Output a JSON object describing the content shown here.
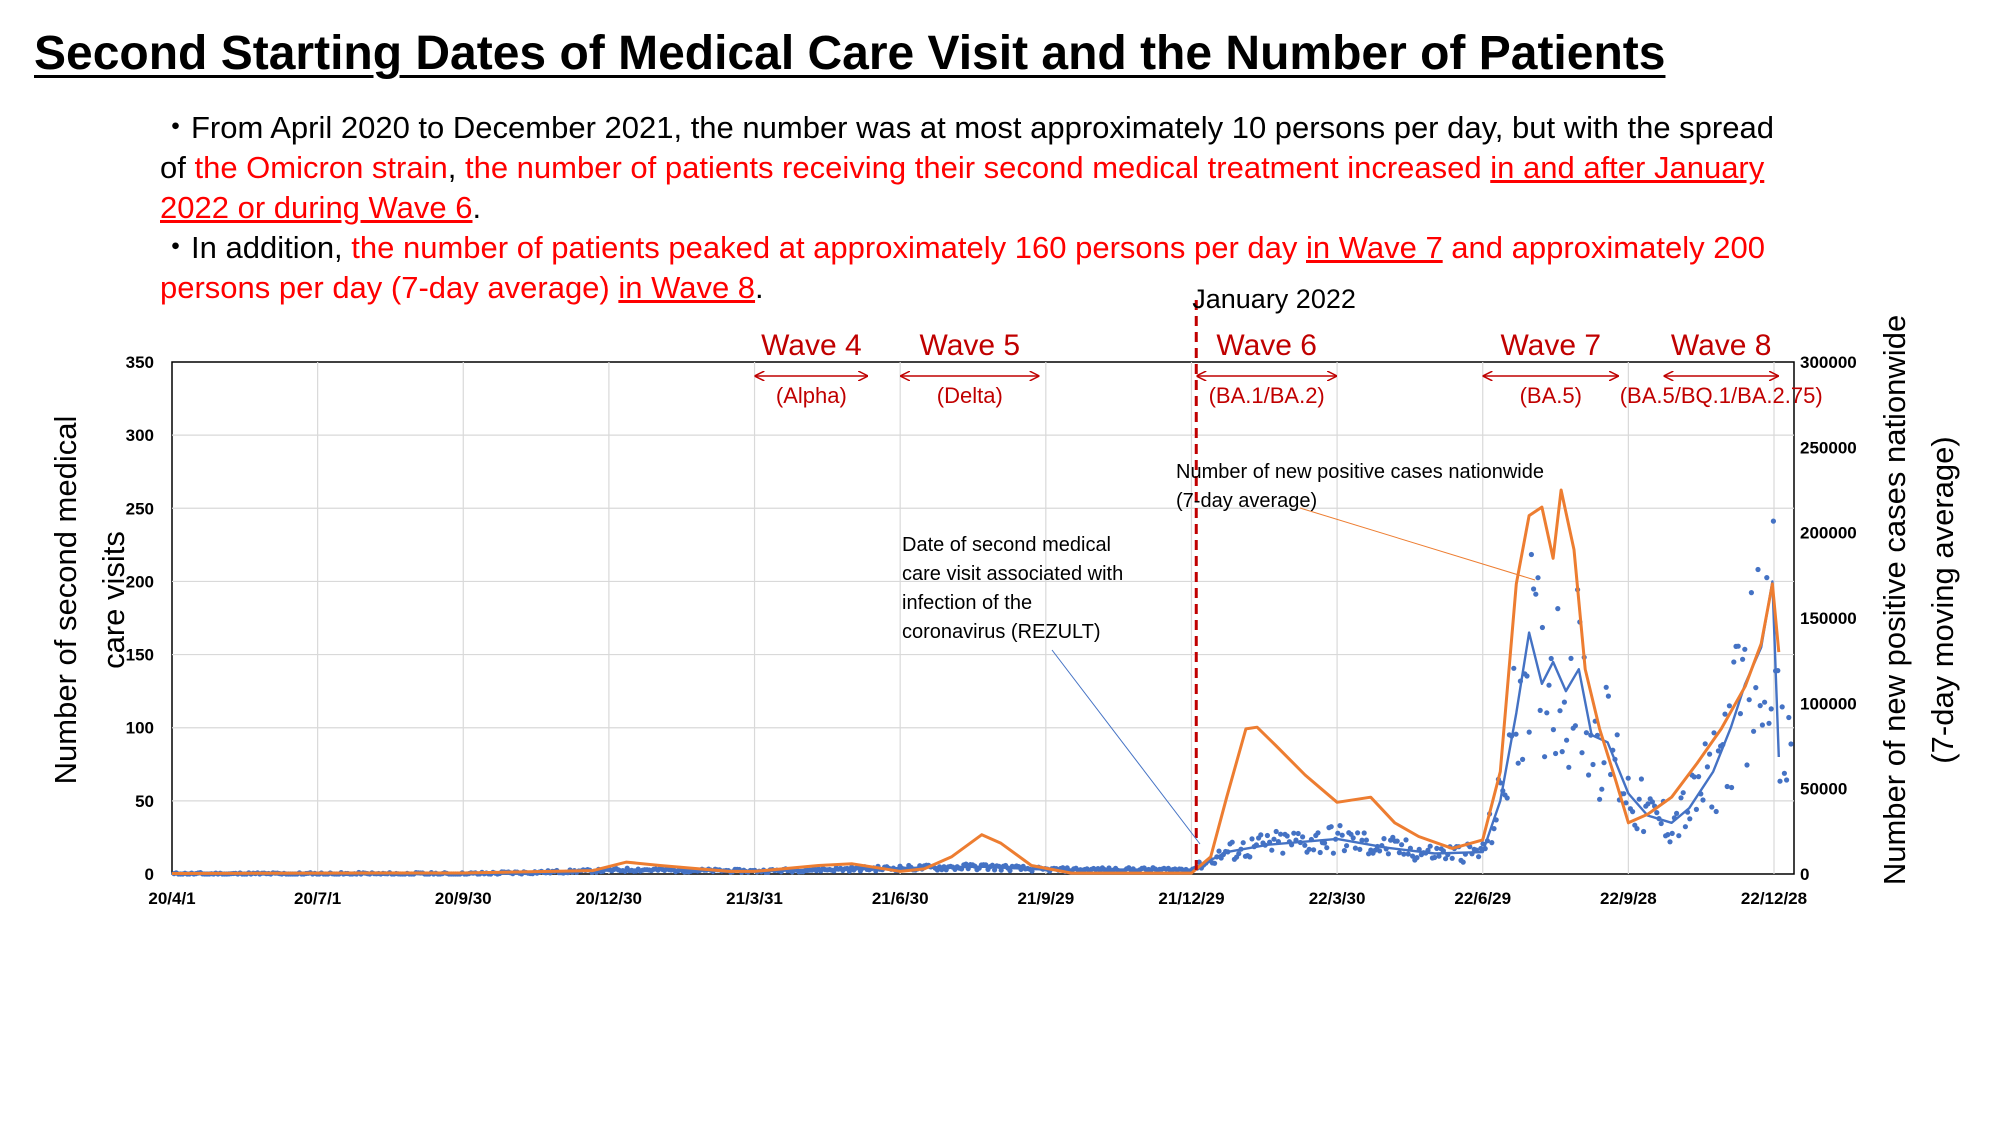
{
  "title": "Second Starting Dates of Medical Care Visit and the Number of Patients",
  "bullet1": {
    "t1": "・From April 2020 to December 2021, the number was at most approximately 10 persons per day, but with the spread of ",
    "t2": "the Omicron strain",
    "t3": ", ",
    "t4": "the number of patients receiving their second medical treatment increased ",
    "t5": "in and after January 2022 or during Wave 6",
    "t6": "."
  },
  "bullet2": {
    "t1": "・In addition, ",
    "t2": "the number of patients peaked at approximately 160 persons per day ",
    "t3": "in Wave 7",
    "t4": " and approximately 200 persons per day (7-day average) ",
    "t5": "in Wave 8",
    "t6": "."
  },
  "colors": {
    "visits": "#4472c4",
    "cases": "#ed7d31",
    "red": "#c00000",
    "grid": "#d9d9d9"
  },
  "chart_data": {
    "type": "line",
    "xlabel": "",
    "ylabel": "Number of second medical care visits",
    "y2label": "Number of new positive cases nationwide (7-day moving average)",
    "x_ticks": [
      "20/4/1",
      "20/7/1",
      "20/9/30",
      "20/12/30",
      "21/3/31",
      "21/6/30",
      "21/9/29",
      "21/12/29",
      "22/3/30",
      "22/6/29",
      "22/9/28",
      "22/12/28"
    ],
    "ylim": [
      0,
      350
    ],
    "y_ticks": [
      0,
      50,
      100,
      150,
      200,
      250,
      300,
      350
    ],
    "y2lim": [
      0,
      300000
    ],
    "y2_ticks": [
      0,
      50000,
      100000,
      150000,
      200000,
      250000,
      300000
    ],
    "y2_tick_labels": [
      "0",
      "50000",
      "100000",
      "150000",
      "200000",
      "250000",
      "300000"
    ],
    "grid": true,
    "marker_label": "January 2022",
    "marker_x": "22/1/1",
    "waves": [
      {
        "label": "Wave 4",
        "strain": "(Alpha)",
        "start": "21/3/31",
        "end": "21/6/10"
      },
      {
        "label": "Wave 5",
        "strain": "(Delta)",
        "start": "21/6/30",
        "end": "21/9/25"
      },
      {
        "label": "Wave 6",
        "strain": "(BA.1/BA.2)",
        "start": "22/1/1",
        "end": "22/3/30"
      },
      {
        "label": "Wave 7",
        "strain": "(BA.5)",
        "start": "22/6/29",
        "end": "22/9/22"
      },
      {
        "label": "Wave 8",
        "strain": "(BA.5/BQ.1/BA.2.75)",
        "start": "22/10/20",
        "end": "22/12/31"
      }
    ],
    "annotations": [
      {
        "text": [
          "Date of second medical",
          "care visit associated with",
          "infection of the",
          "coronavirus (REZULT)"
        ],
        "target": "visits"
      },
      {
        "text": [
          "Number of new positive cases nationwide",
          "(7-day average)"
        ],
        "target": "cases"
      }
    ],
    "series": [
      {
        "name": "Date of second medical care visit associated with infection of the coronavirus (REZULT)",
        "axis": "left",
        "x": [
          "20/4/1",
          "20/7/1",
          "20/9/30",
          "20/12/15",
          "21/1/15",
          "21/3/31",
          "21/5/10",
          "21/6/30",
          "21/8/20",
          "21/9/29",
          "21/12/29",
          "22/1/20",
          "22/2/15",
          "22/3/30",
          "22/4/30",
          "22/5/30",
          "22/6/29",
          "22/7/10",
          "22/7/20",
          "22/7/28",
          "22/8/5",
          "22/8/12",
          "22/8/20",
          "22/8/28",
          "22/9/5",
          "22/9/15",
          "22/9/28",
          "22/10/10",
          "22/10/25",
          "22/11/5",
          "22/11/20",
          "22/12/1",
          "22/12/10",
          "22/12/20",
          "22/12/27",
          "22/12/31"
        ],
        "values": [
          0,
          0,
          0,
          2,
          3,
          2,
          3,
          4,
          5,
          3,
          3,
          15,
          20,
          24,
          18,
          14,
          15,
          50,
          110,
          165,
          130,
          145,
          125,
          140,
          95,
          90,
          55,
          40,
          35,
          45,
          70,
          100,
          130,
          155,
          200,
          80
        ]
      },
      {
        "name": "Number of new positive cases nationwide (7-day average)",
        "axis": "right",
        "x": [
          "20/4/1",
          "20/7/1",
          "20/9/30",
          "20/12/20",
          "21/1/10",
          "21/1/31",
          "21/3/15",
          "21/3/31",
          "21/5/10",
          "21/5/31",
          "21/6/30",
          "21/7/15",
          "21/8/1",
          "21/8/20",
          "21/9/1",
          "21/9/20",
          "21/10/15",
          "21/12/29",
          "22/1/10",
          "22/1/20",
          "22/2/1",
          "22/2/8",
          "22/2/20",
          "22/3/10",
          "22/3/20",
          "22/3/30",
          "22/4/20",
          "22/5/5",
          "22/5/20",
          "22/6/10",
          "22/6/29",
          "22/7/10",
          "22/7/20",
          "22/7/28",
          "22/8/5",
          "22/8/12",
          "22/8/17",
          "22/8/25",
          "22/9/1",
          "22/9/10",
          "22/9/20",
          "22/9/28",
          "22/10/10",
          "22/10/25",
          "22/11/10",
          "22/11/25",
          "22/12/10",
          "22/12/20",
          "22/12/27",
          "22/12/31"
        ],
        "values": [
          300,
          500,
          600,
          2000,
          7000,
          5000,
          1500,
          1500,
          5000,
          6000,
          1500,
          3000,
          10000,
          23000,
          18000,
          5000,
          500,
          500,
          10000,
          45000,
          85000,
          86000,
          75000,
          58000,
          50000,
          42000,
          45000,
          30000,
          22000,
          15000,
          20000,
          60000,
          170000,
          210000,
          215000,
          185000,
          225000,
          190000,
          120000,
          85000,
          55000,
          30000,
          35000,
          45000,
          65000,
          85000,
          110000,
          135000,
          170000,
          130000
        ]
      }
    ]
  }
}
